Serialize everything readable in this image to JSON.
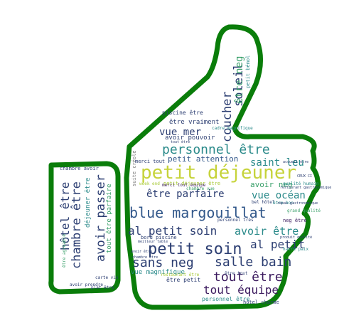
{
  "colors": {
    "outline": "#0a7d0a",
    "purple": "#3b1a5e",
    "navy": "#2c3e72",
    "blue": "#31578a",
    "teal": "#2a8a8a",
    "green": "#3aa06a",
    "lime": "#a7c935",
    "yellow": "#c9d33a",
    "grey": "#777777"
  },
  "words": {
    "petit_dejeuner": "petit déjeuner",
    "blue_margouillat": "blue margouillat",
    "petit_soin": "petit soin",
    "personnel_etre": "personnel être",
    "tout_etre": "tout être",
    "tout_equipe": "tout équipe",
    "sans_neg": "sans neg",
    "salle_bain": "salle bain",
    "al_petit_soin": "al petit soin",
    "avoir_etre": "avoir être",
    "al_petit": "al petit",
    "etre_parfaire": "être parfaire",
    "vue_ocean": "vue océan",
    "saint_leu": "saint leu",
    "vue_mer": "vue mer",
    "coucher": "coucher",
    "soleil": "soleil",
    "etre_neg": "être neg",
    "petit_attention": "petit attention",
    "avoir_neg": "avoir neg",
    "etre_vraiment": "être vraiment",
    "avoir_pouvoir": "avoir pouvoir",
    "chambre_etre": "chambre être",
    "hotel_etre": "hôtel être",
    "avoir_passer": "avoir passer",
    "dejeuner_etre": "déjeuner être",
    "tout_etre_parfaire": "tout être parfaire",
    "chambre_avoir": "chambre avoir",
    "vue_magnifique": "vue magnifique",
    "etre_petit": "être petit",
    "personnel_etre_small": "personnel être",
    "hotel_charme": "hôtel charme",
    "piscine_etre": "piscine être",
    "merci_tout": "merci tout",
    "suite_creole": "suite créole",
    "petit_dejeuner_etre": "petit déjeuner être",
    "bord_piscine": "bord piscine",
    "chambre_vue": "chambre vue",
    "restaurant_etre": "restaurant être",
    "merci_tout_equipe": "merci tout équipe",
    "bel_hotel": "bel hôtel",
    "week_end": "week end",
    "etre_bon": "être bon",
    "cadre_magnifique": "cadre magnifique",
    "neg_etre": "neg être",
    "grand_qualite": "grand qualité",
    "havre_paix": "havre paix",
    "restaurant_gastronomique": "restaurant gastronomique",
    "plat_etre": "plat être",
    "carte_vin": "carte vin",
    "avoir_prendre": "avoir prendre",
    "meilleur_table": "meilleur table",
    "ceux_ci": "CEUX CI",
    "petit_bemol": "petit bémol",
    "accueil_etre": "accueil être",
    "qualite_humain": "qualité humain",
    "etre_agreable": "être agréable",
    "personnel_tres": "personnel très",
    "tout_etre_small": "tout être",
    "etre_tout": "être tout",
    "chambre_etre_small": "chambre être",
    "avoir_etre_small": "avoir être",
    "produit_qualite": "produit qualité",
    "repas_gastronomique": "repas gastronomique"
  }
}
